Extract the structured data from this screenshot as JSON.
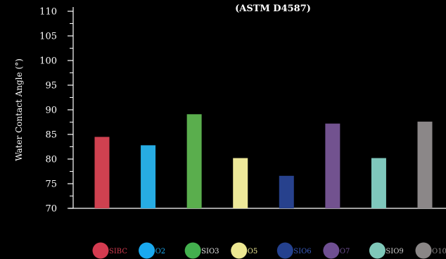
{
  "chart_data": {
    "type": "bar",
    "title": "(ASTM D4587)",
    "xlabel": "",
    "ylabel": "Water Contact Angle (°)",
    "ylim": [
      70,
      110
    ],
    "yticks": [
      70,
      75,
      80,
      85,
      90,
      95,
      100,
      105,
      110
    ],
    "grid": false,
    "legend_position": "bottom",
    "categories": [
      "SIBC",
      "SIO2",
      "SIO3",
      "SIO5",
      "SIO6",
      "SIO7",
      "SIO9",
      "SIO10"
    ],
    "values": [
      84.5,
      82.8,
      89.1,
      80.2,
      76.6,
      87.2,
      80.2,
      87.6
    ],
    "colors": [
      "#cf4150",
      "#27ace3",
      "#5aae4d",
      "#ede899",
      "#27418d",
      "#72528f",
      "#7fc7bc",
      "#8b8788"
    ],
    "legend": [
      {
        "swatch": "#d43b50",
        "label": "SIBC",
        "label_color": "#d43b50"
      },
      {
        "swatch": "#1aa9ef",
        "label": "O2",
        "label_color": "#1aa9ef"
      },
      {
        "swatch": "#43b04e",
        "label": "SIO3",
        "label_color": "#e8e8e8"
      },
      {
        "swatch": "#ede892",
        "label": "O5",
        "label_color": "#ede892"
      },
      {
        "swatch": "#24418f",
        "label": "SIO6",
        "label_color": "#3a5cc0"
      },
      {
        "swatch": "#6f4f92",
        "label": "O7",
        "label_color": "#6f4f92"
      },
      {
        "swatch": "#7fc8b9",
        "label": "SIO9",
        "label_color": "#cfcfcf"
      },
      {
        "swatch": "#8a8686",
        "label": "O10",
        "label_color": "#8a8686"
      }
    ]
  }
}
